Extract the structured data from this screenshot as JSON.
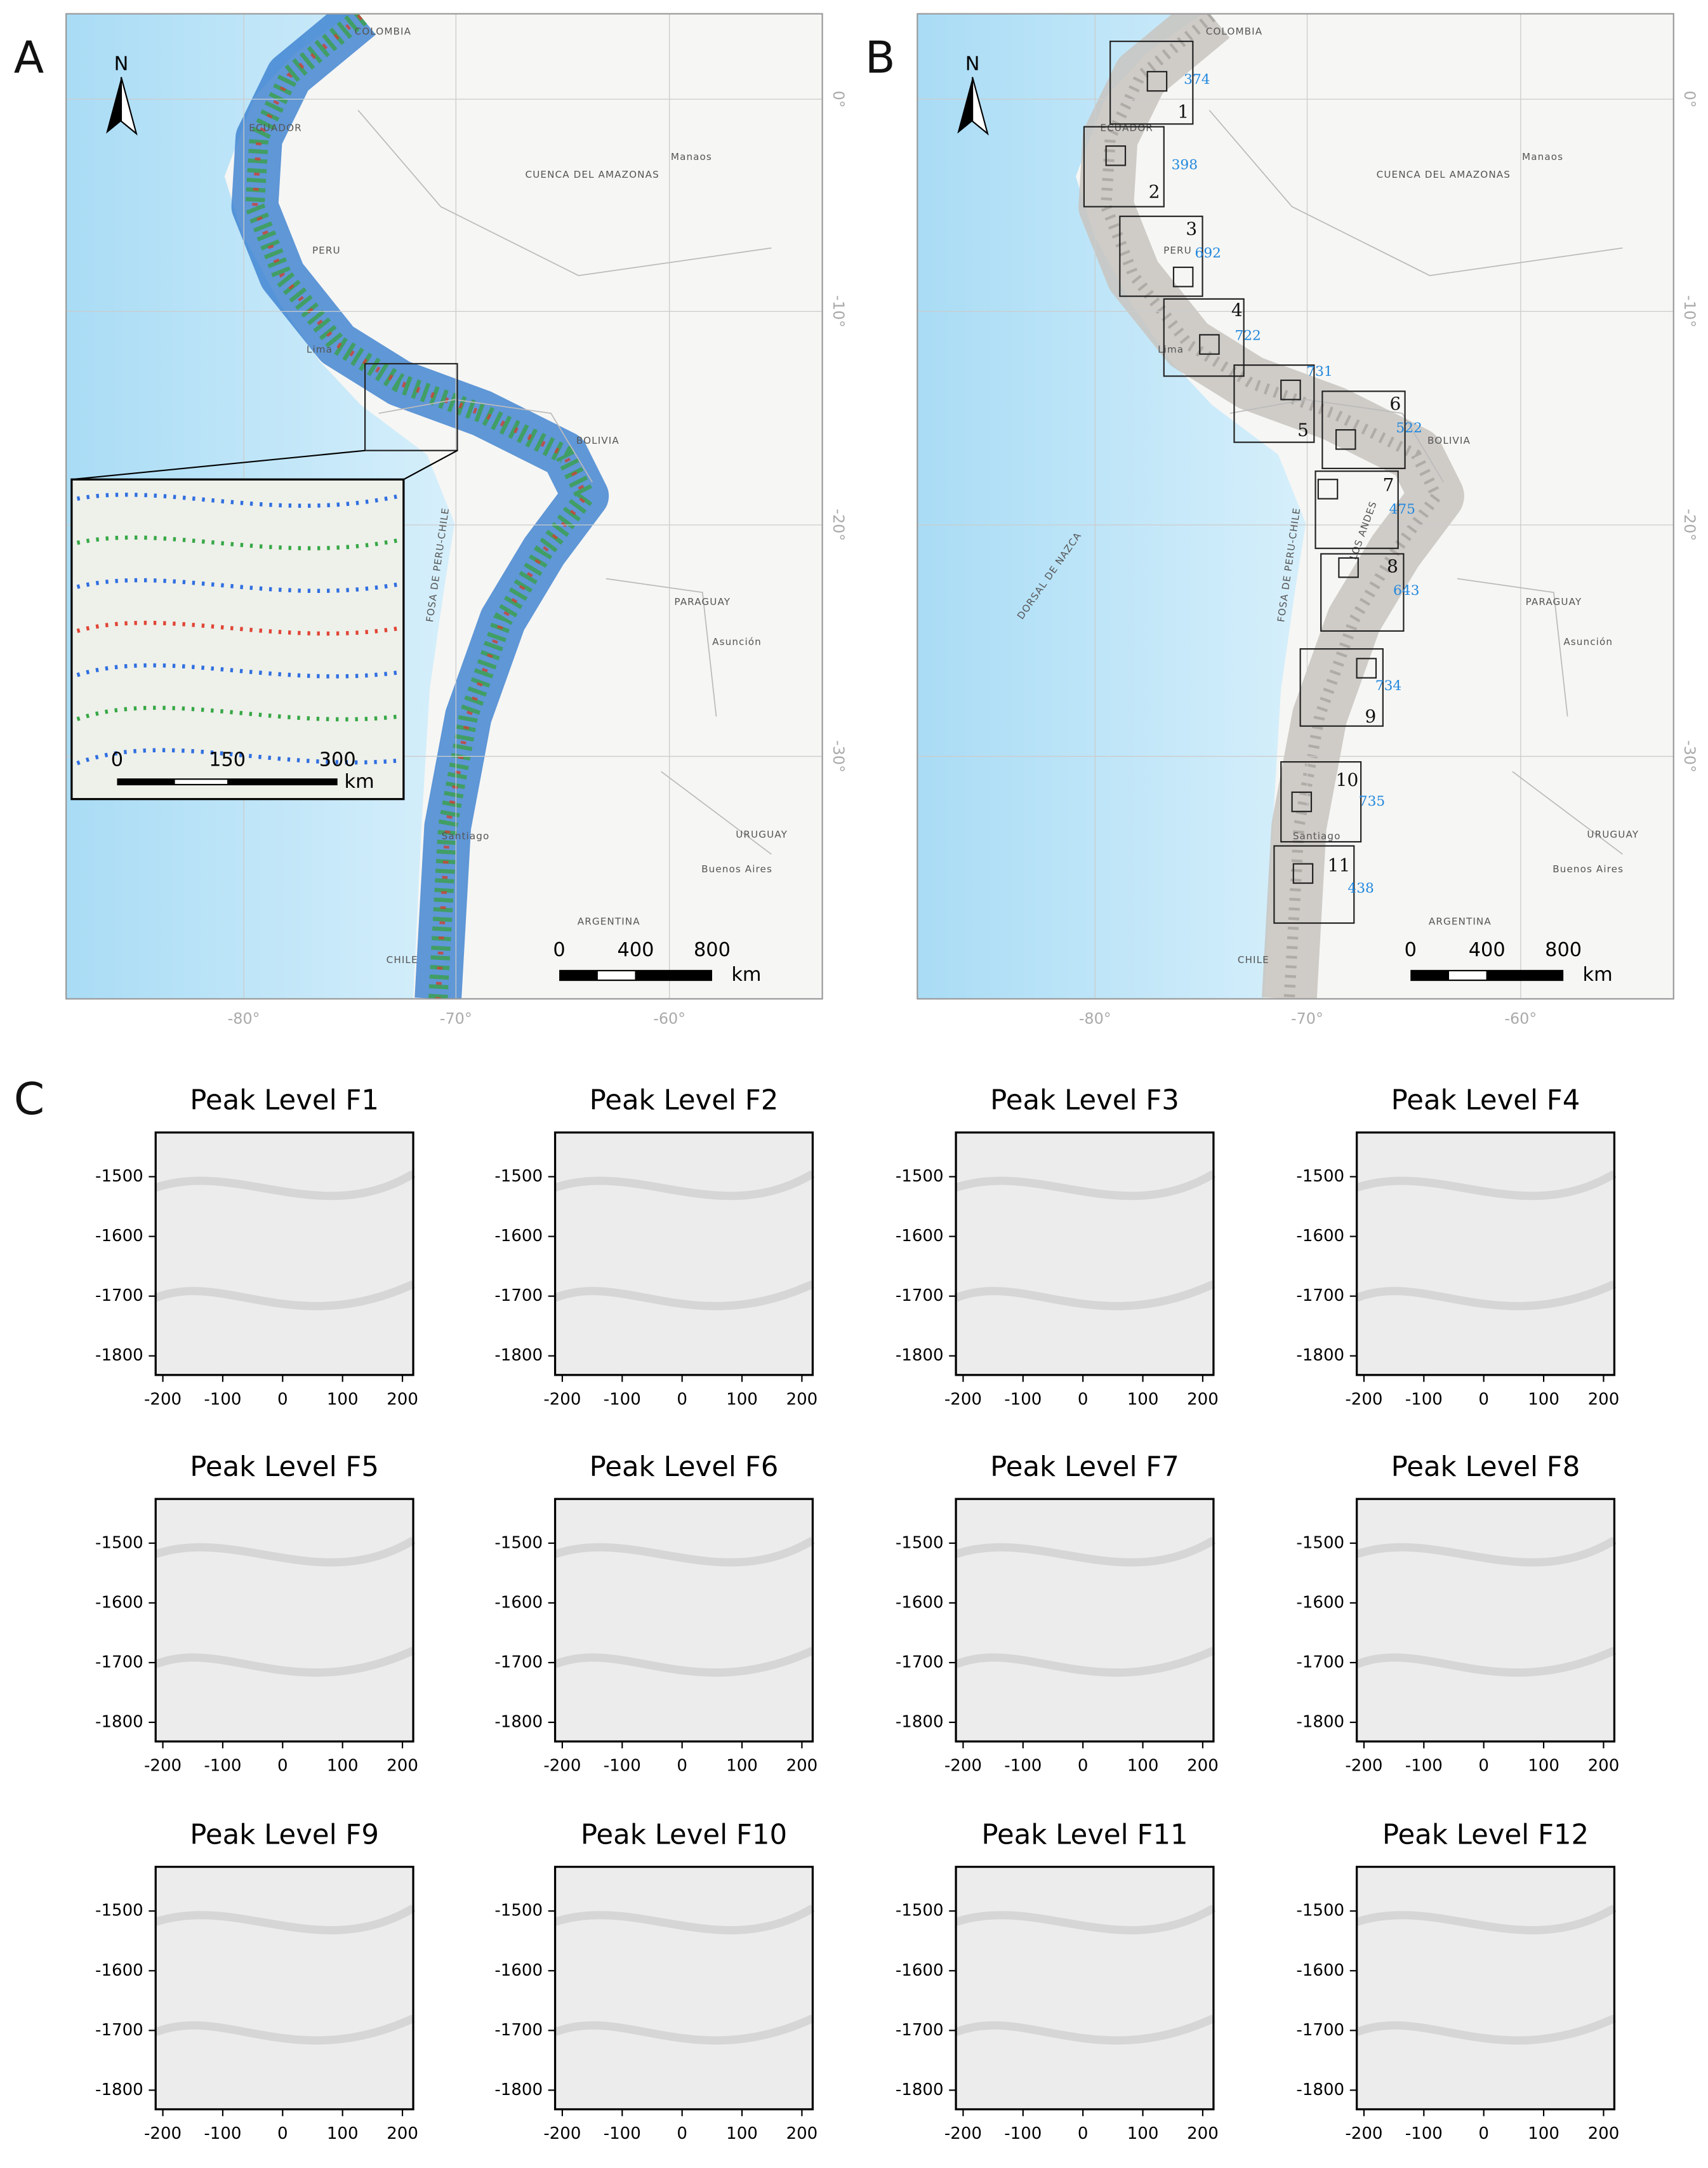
{
  "panel_labels": [
    "A",
    "B",
    "C"
  ],
  "maps": {
    "places": [
      "COLOMBIA",
      "ECUADOR",
      "PERU",
      "CUENCA DEL AMAZONAS",
      "Manaos",
      "BOLIVIA",
      "PARAGUAY",
      "Asunción",
      "URUGUAY",
      "Buenos Aires",
      "ARGENTINA",
      "CHILE",
      "Santiago",
      "Lima",
      "FOSA DE PERU-CHILE"
    ],
    "lon_ticks": [
      "-80°",
      "-70°",
      "-60°"
    ],
    "lat_ticks": [
      "0°",
      "-10°",
      "-20°",
      "-30°"
    ],
    "north": "N",
    "scale_ticks": [
      0,
      400,
      800
    ],
    "scale_unit": "km"
  },
  "map_a": {
    "inset_scale_ticks": [
      0,
      150,
      300
    ],
    "inset_scale_unit": "km"
  },
  "map_b": {
    "extra_places": [
      "LOS ANDES",
      "DORSAL DE NAZCA"
    ],
    "boxes": [
      {
        "number": "1",
        "count": "374"
      },
      {
        "number": "2",
        "count": "398"
      },
      {
        "number": "3",
        "count": "692"
      },
      {
        "number": "4",
        "count": "722"
      },
      {
        "number": "5",
        "count": "731"
      },
      {
        "number": "6",
        "count": "522"
      },
      {
        "number": "7",
        "count": "475"
      },
      {
        "number": "8",
        "count": "643"
      },
      {
        "number": "9",
        "count": "734"
      },
      {
        "number": "10",
        "count": "735"
      },
      {
        "number": "11",
        "count": "438"
      }
    ]
  },
  "panel_c": {
    "titles": [
      "Peak Level F1",
      "Peak Level F2",
      "Peak Level F3",
      "Peak Level F4",
      "Peak Level F5",
      "Peak Level F6",
      "Peak Level F7",
      "Peak Level F8",
      "Peak Level F9",
      "Peak Level F10",
      "Peak Level F11",
      "Peak Level F12"
    ],
    "xlim": [
      -212,
      218
    ],
    "xticks": [
      -200,
      -100,
      0,
      100,
      200
    ],
    "ylim": [
      -1832,
      -1426
    ],
    "yticks": [
      -1500,
      -1600,
      -1700,
      -1800
    ]
  }
}
